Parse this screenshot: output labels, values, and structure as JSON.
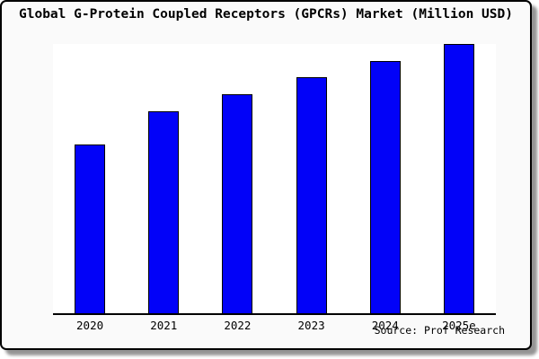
{
  "chart_data": {
    "type": "bar",
    "title": "Global G-Protein Coupled Receptors (GPCRs) Market (Million USD)",
    "categories": [
      "2020",
      "2021",
      "2022",
      "2023",
      "2024",
      "2025e"
    ],
    "values": [
      188,
      225,
      244,
      263,
      281,
      300
    ],
    "value_note": "No y-axis scale or data labels are shown in the chart; values are relative bar heights (pixels) read from the plot, max bar fills plot height",
    "xlabel": "",
    "ylabel": "",
    "ylim": [
      0,
      300
    ],
    "grid": false,
    "legend": "none",
    "bar_color": "#0202f8",
    "bar_border_color": "#000000"
  },
  "source": {
    "label": "Source: Prof Research"
  },
  "colors": {
    "figure_background": "#fafafa",
    "plot_background": "#ffffff",
    "frame_border": "#000000",
    "axis_line": "#000000"
  }
}
